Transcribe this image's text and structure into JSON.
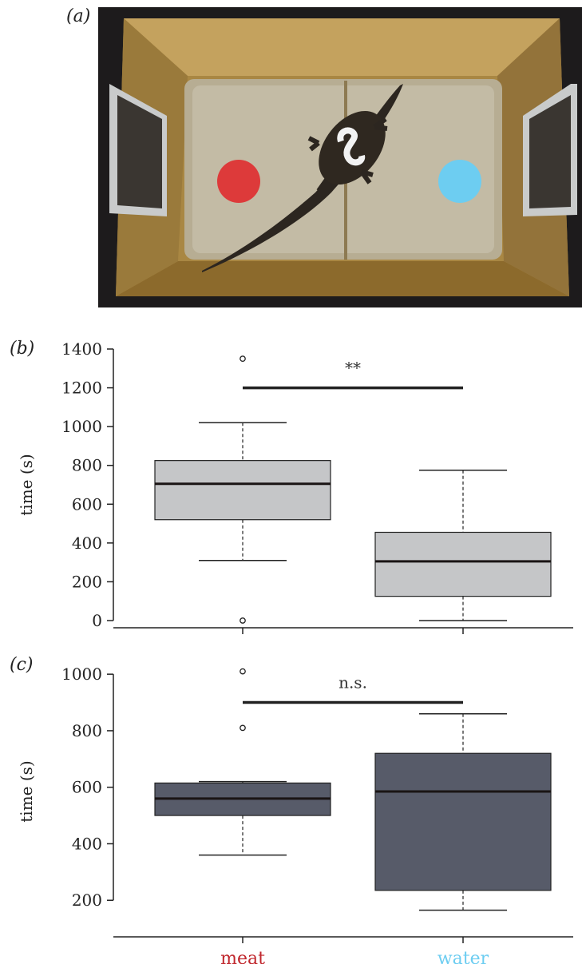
{
  "panels": {
    "a_label": "(a)",
    "b_label": "(b)",
    "c_label": "(c)"
  },
  "photo": {
    "description_icons": [
      "wooden-arena",
      "crocodile",
      "red-target-disc",
      "blue-target-disc",
      "side-screen-left",
      "side-screen-right"
    ],
    "red_disc_color": "#dd3a3a",
    "blue_disc_color": "#6dcdf1",
    "box_color": "#8a6a2e"
  },
  "chart_data": [
    {
      "type": "box",
      "panel": "(b)",
      "categories": [
        "meat",
        "water"
      ],
      "ylabel": "time (s)",
      "ylim": [
        0,
        1400
      ],
      "yticks": [
        0,
        200,
        400,
        600,
        800,
        1000,
        1200,
        1400
      ],
      "fill": "#c5c6c8",
      "boxes": [
        {
          "category": "meat",
          "whisker_low": 310,
          "q1": 520,
          "median": 705,
          "q3": 825,
          "whisker_high": 1020,
          "outliers": [
            0,
            1350
          ]
        },
        {
          "category": "water",
          "whisker_low": 0,
          "q1": 125,
          "median": 305,
          "q3": 455,
          "whisker_high": 775,
          "outliers": []
        }
      ],
      "significance": {
        "label": "**",
        "y": 1200
      }
    },
    {
      "type": "box",
      "panel": "(c)",
      "categories": [
        "meat",
        "water"
      ],
      "category_colors": [
        "#c0272d",
        "#6dcdf1"
      ],
      "ylabel": "time (s)",
      "ylim": [
        130,
        1040
      ],
      "yticks": [
        200,
        400,
        600,
        800,
        1000
      ],
      "fill": "#575b69",
      "boxes": [
        {
          "category": "meat",
          "whisker_low": 360,
          "q1": 500,
          "median": 560,
          "q3": 615,
          "whisker_high": 620,
          "outliers": [
            810,
            1010
          ]
        },
        {
          "category": "water",
          "whisker_low": 165,
          "q1": 235,
          "median": 585,
          "q3": 720,
          "whisker_high": 860,
          "outliers": []
        }
      ],
      "significance": {
        "label": "n.s.",
        "y": 900
      }
    }
  ]
}
